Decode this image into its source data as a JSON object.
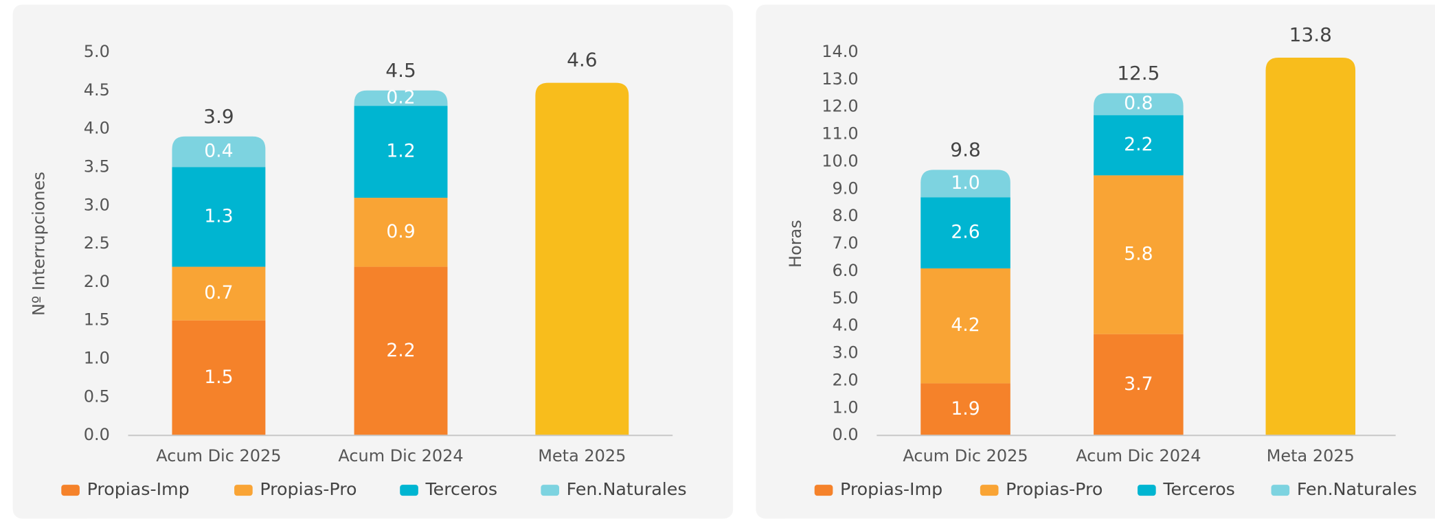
{
  "chart_data": [
    {
      "type": "bar",
      "stacked": true,
      "y_label": "Nº Interrupciones",
      "categories": [
        "Acum Dic 2025",
        "Acum Dic 2024",
        "Meta 2025"
      ],
      "series": [
        {
          "name": "Propias-Imp",
          "color": "#f5822a",
          "values": [
            1.5,
            2.2,
            null
          ]
        },
        {
          "name": "Propias-Pro",
          "color": "#f9a435",
          "values": [
            0.7,
            0.9,
            null
          ]
        },
        {
          "name": "Terceros",
          "color": "#00b5d1",
          "values": [
            1.3,
            1.2,
            null
          ]
        },
        {
          "name": "Fen.Naturales",
          "color": "#7dd3e0",
          "values": [
            0.4,
            0.2,
            null
          ]
        },
        {
          "color": "#f8bd1c",
          "values": [
            null,
            null,
            4.6
          ],
          "label_position": "top"
        }
      ],
      "totals": [
        3.9,
        4.5,
        null
      ],
      "ylim": [
        0,
        5
      ],
      "yticks": [
        {
          "value": 0,
          "label": "0.0"
        },
        {
          "value": 0.5,
          "label": "0.5"
        },
        {
          "value": 1,
          "label": "1.0"
        },
        {
          "value": 1.5,
          "label": "1.5"
        },
        {
          "value": 2,
          "label": "2.0"
        },
        {
          "value": 2.5,
          "label": "2.5"
        },
        {
          "value": 3,
          "label": "3.0"
        },
        {
          "value": 3.5,
          "label": "3.5"
        },
        {
          "value": 4,
          "label": "4.0"
        },
        {
          "value": 4.5,
          "label": "4.5"
        },
        {
          "value": 5,
          "label": "5.0"
        }
      ],
      "legend": "bottom"
    },
    {
      "type": "bar",
      "stacked": true,
      "y_label": "Horas",
      "categories": [
        "Acum Dic 2025",
        "Acum Dic 2024",
        "Meta 2025"
      ],
      "series": [
        {
          "name": "Propias-Imp",
          "color": "#f5822a",
          "values": [
            1.9,
            3.7,
            null
          ]
        },
        {
          "name": "Propias-Pro",
          "color": "#f9a435",
          "values": [
            4.2,
            5.8,
            null
          ]
        },
        {
          "name": "Terceros",
          "color": "#00b5d1",
          "values": [
            2.6,
            2.2,
            null
          ]
        },
        {
          "name": "Fen.Naturales",
          "color": "#7dd3e0",
          "values": [
            1,
            0.8,
            null
          ],
          "value_labels": [
            "1.0",
            "0.8",
            null
          ]
        },
        {
          "color": "#f8bd1c",
          "values": [
            null,
            null,
            13.8
          ],
          "label_position": "top"
        }
      ],
      "totals": [
        9.8,
        12.5,
        null
      ],
      "ylim": [
        0,
        14
      ],
      "yticks": [
        {
          "value": 0,
          "label": "0.0"
        },
        {
          "value": 1,
          "label": "1.0"
        },
        {
          "value": 2,
          "label": "2.0"
        },
        {
          "value": 3,
          "label": "3.0"
        },
        {
          "value": 4,
          "label": "4.0"
        },
        {
          "value": 5,
          "label": "5.0"
        },
        {
          "value": 6,
          "label": "6.0"
        },
        {
          "value": 7,
          "label": "7.0"
        },
        {
          "value": 8,
          "label": "8.0"
        },
        {
          "value": 9,
          "label": "9.0"
        },
        {
          "value": 10,
          "label": "10.0"
        },
        {
          "value": 11,
          "label": "11.0"
        },
        {
          "value": 12,
          "label": "12.0"
        },
        {
          "value": 13,
          "label": "13.0"
        },
        {
          "value": 14,
          "label": "14.0"
        }
      ],
      "legend": "bottom"
    }
  ]
}
